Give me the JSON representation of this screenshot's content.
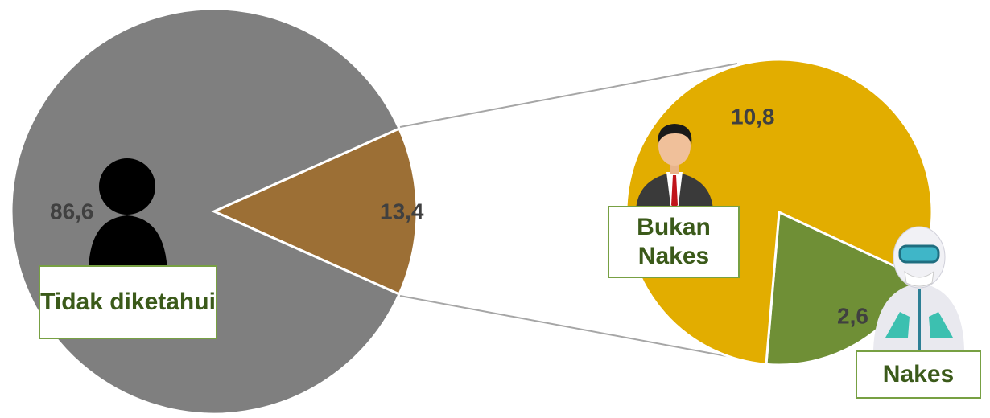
{
  "chart_data": [
    {
      "type": "pie",
      "categories": [
        "Tidak diketahui",
        null
      ],
      "values": [
        86.6,
        13.4
      ],
      "value_labels": [
        "86,6",
        "13,4"
      ],
      "colors": [
        "#7f7f7f",
        "#9c6f35"
      ]
    },
    {
      "type": "pie",
      "categories": [
        "Bukan Nakes",
        "Nakes"
      ],
      "values": [
        10.8,
        2.6
      ],
      "value_labels": [
        "10,8",
        "2,6"
      ],
      "colors": [
        "#e2ad00",
        "#6f8f36"
      ]
    }
  ]
}
